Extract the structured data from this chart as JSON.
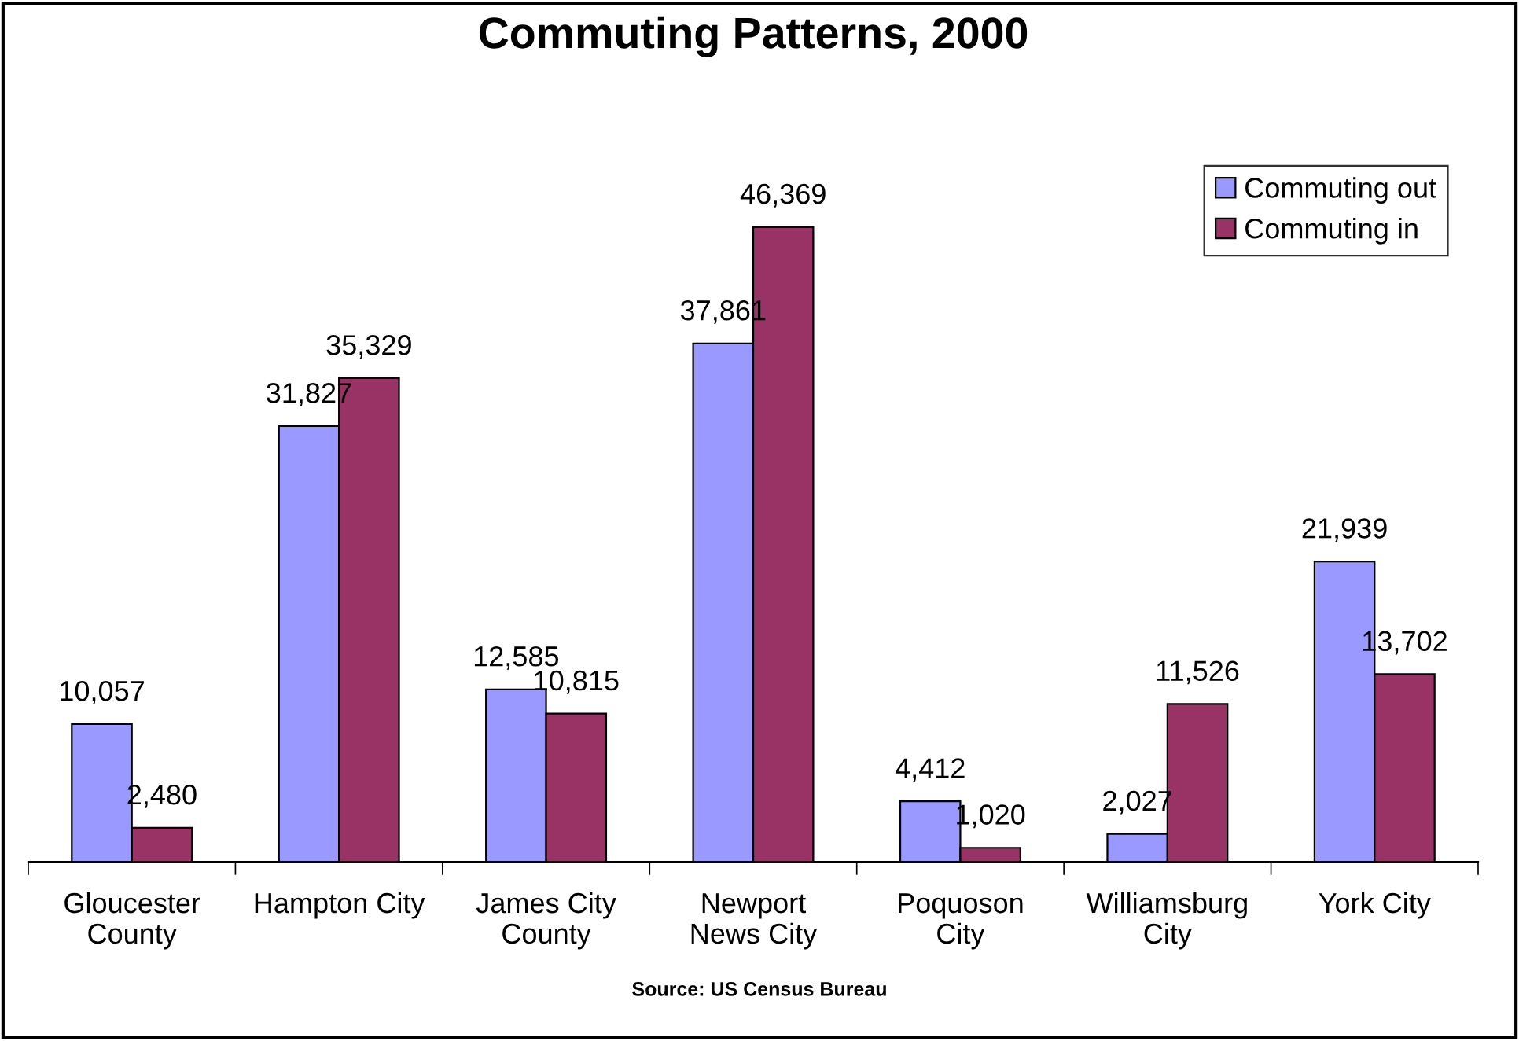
{
  "chart_data": {
    "type": "bar",
    "title": "Commuting Patterns, 2000",
    "categories": [
      "Gloucester\nCounty",
      "Hampton City",
      "James City\nCounty",
      "Newport\nNews City",
      "Poquoson\nCity",
      "Williamsburg\nCity",
      "York City"
    ],
    "series": [
      {
        "name": "Commuting out",
        "color": "#9999ff",
        "values": [
          10057,
          31827,
          12585,
          37861,
          4412,
          2027,
          21939
        ],
        "value_labels": [
          "10,057",
          "31,827",
          "12,585",
          "37,861",
          "4,412",
          "2,027",
          "21,939"
        ]
      },
      {
        "name": "Commuting in",
        "color": "#993366",
        "values": [
          2480,
          35329,
          10815,
          46369,
          1020,
          11526,
          13702
        ],
        "value_labels": [
          "2,480",
          "35,329",
          "10,815",
          "46,369",
          "1,020",
          "11,526",
          "13,702"
        ]
      }
    ],
    "tick_labels": "x",
    "legend": "top right",
    "grid": false,
    "annotations": [
      "Source: US Census Bureau"
    ]
  }
}
